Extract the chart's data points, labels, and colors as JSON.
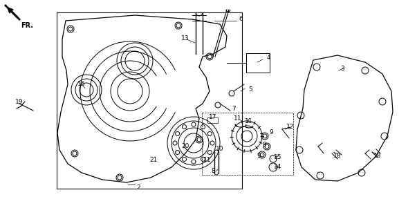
{
  "bg_color": "#ffffff",
  "line_color": "#000000",
  "figure_width": 5.9,
  "figure_height": 3.01,
  "dpi": 100,
  "labels": [
    [
      "2",
      200,
      272
    ],
    [
      "3",
      495,
      100
    ],
    [
      "4",
      388,
      84
    ],
    [
      "5",
      362,
      130
    ],
    [
      "6",
      348,
      28
    ],
    [
      "7",
      338,
      158
    ],
    [
      "8",
      308,
      248
    ],
    [
      "9",
      392,
      192
    ],
    [
      "9",
      382,
      210
    ],
    [
      "9",
      374,
      226
    ],
    [
      "10",
      318,
      215
    ],
    [
      "11",
      300,
      232
    ],
    [
      "11",
      344,
      172
    ],
    [
      "11",
      360,
      175
    ],
    [
      "12",
      420,
      183
    ],
    [
      "13",
      268,
      55
    ],
    [
      "14",
      402,
      242
    ],
    [
      "15",
      402,
      228
    ],
    [
      "16",
      118,
      122
    ],
    [
      "17",
      308,
      170
    ],
    [
      "18",
      488,
      225
    ],
    [
      "18",
      546,
      225
    ],
    [
      "19",
      28,
      148
    ],
    [
      "20",
      268,
      212
    ],
    [
      "21",
      222,
      232
    ]
  ]
}
